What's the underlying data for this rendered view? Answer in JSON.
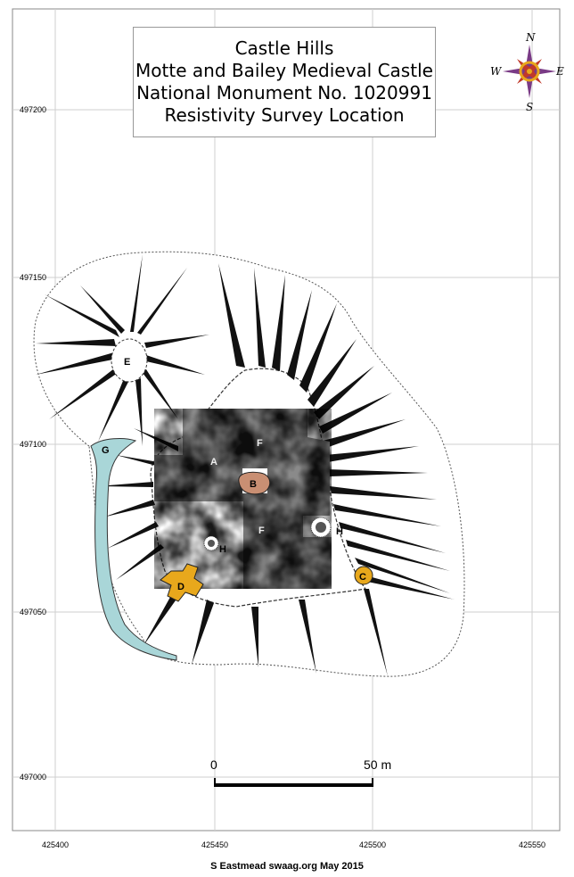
{
  "title": {
    "line1": "Castle Hills",
    "line2": "Motte and Bailey Medieval Castle",
    "line3": "National Monument No. 1020991",
    "line4": "Resistivity Survey Location"
  },
  "y_ticks": [
    "497200",
    "497150",
    "497100",
    "497050",
    "497000"
  ],
  "x_ticks": [
    "425400",
    "425450",
    "425500",
    "425550"
  ],
  "scale_bar": {
    "start_label": "0",
    "end_label": "50 m"
  },
  "compass": {
    "n": "N",
    "s": "S",
    "e": "E",
    "w": "W"
  },
  "features": {
    "a": "A",
    "b": "B",
    "c": "C",
    "d": "D",
    "e": "E",
    "f1": "F",
    "f2": "F",
    "g": "G",
    "h1": "H",
    "h2": "H"
  },
  "colors": {
    "feature_fill": "#e8a81c",
    "mound_fill": "#c98f73",
    "water_fill": "#a9d6d8",
    "grid": "#cfcfcf"
  },
  "credit": "S  Eastmead   swaag.org   May 2015"
}
